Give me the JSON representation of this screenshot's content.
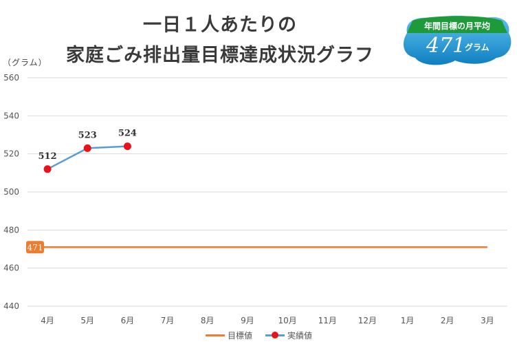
{
  "title_line1": "一日１人あたりの",
  "title_line2": "家庭ごみ排出量目標達成状況グラフ",
  "unit_label": "（グラム）",
  "badge": {
    "title": "年間目標の月平均",
    "value": "471",
    "unit": "グラム"
  },
  "colors": {
    "target": "#ed7d31",
    "actual_line": "#5b9bd5",
    "actual_marker": "#e8121b",
    "badge_green": "#2e9e3f",
    "badge_blue": "#1aa3e0"
  },
  "chart_data": {
    "type": "line",
    "categories": [
      "4月",
      "5月",
      "6月",
      "7月",
      "8月",
      "9月",
      "10月",
      "11月",
      "12月",
      "1月",
      "2月",
      "3月"
    ],
    "ylim": [
      440,
      560
    ],
    "yticks": [
      "440",
      "460",
      "480",
      "500",
      "520",
      "540",
      "560"
    ],
    "grid": true,
    "legend_position": "bottom",
    "series": [
      {
        "name": "目標値",
        "values": [
          471,
          471,
          471,
          471,
          471,
          471,
          471,
          471,
          471,
          471,
          471,
          471
        ],
        "start_label": "471"
      },
      {
        "name": "実績値",
        "values": [
          512,
          523,
          524,
          null,
          null,
          null,
          null,
          null,
          null,
          null,
          null,
          null
        ],
        "labels": [
          "512",
          "523",
          "524"
        ]
      }
    ]
  }
}
